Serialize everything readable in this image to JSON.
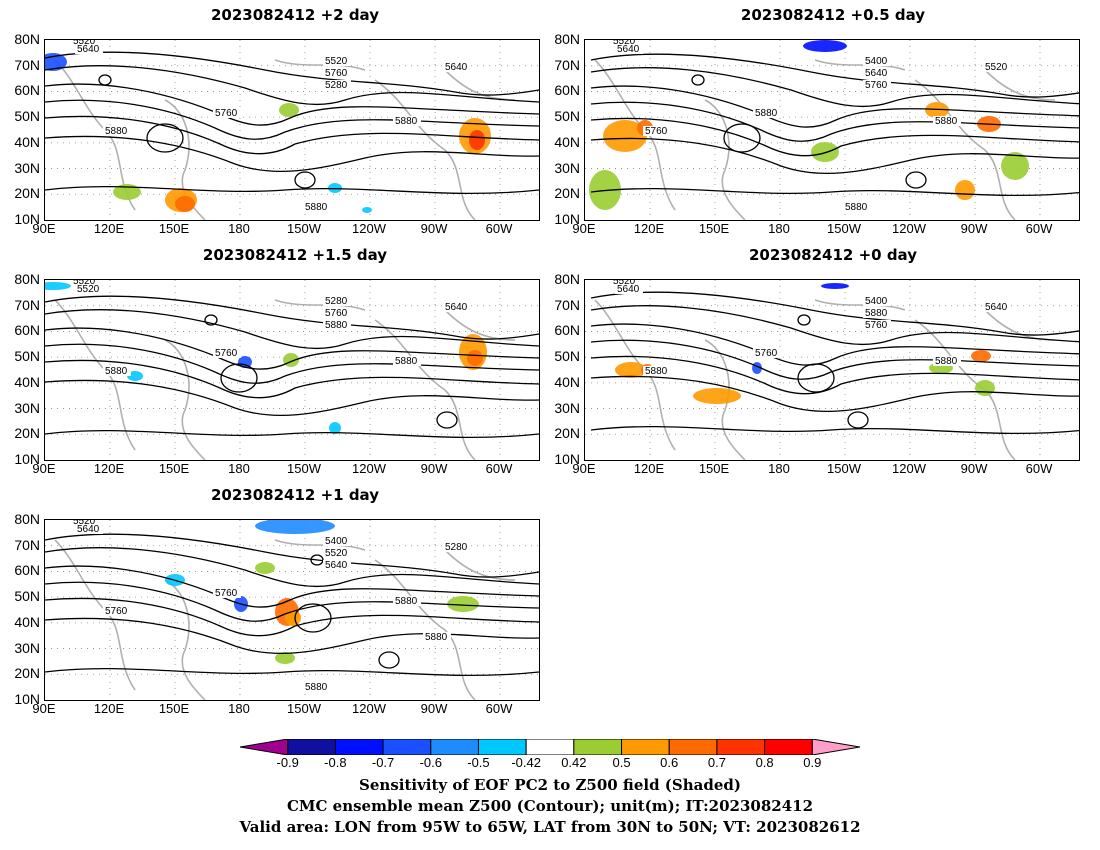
{
  "panels": [
    {
      "id": "p1",
      "title": "2023082412 +2 day",
      "labels": [
        "5520",
        "5640",
        "5520",
        "5640",
        "5760",
        "5280",
        "5760",
        "5880",
        "5880",
        "5880"
      ]
    },
    {
      "id": "p2",
      "title": "2023082412 +0.5 day",
      "labels": [
        "5520",
        "5640",
        "5400",
        "5520",
        "5640",
        "5760",
        "5880",
        "5760",
        "5880",
        "5880"
      ]
    },
    {
      "id": "p3",
      "title": "2023082412 +1.5 day",
      "labels": [
        "5520",
        "5520",
        "5280",
        "5640",
        "5760",
        "5880",
        "5760",
        "5880",
        "5880"
      ]
    },
    {
      "id": "p4",
      "title": "2023082412 +0 day",
      "labels": [
        "5520",
        "5640",
        "5400",
        "5640",
        "5880",
        "5760",
        "5760",
        "5880",
        "5880"
      ]
    },
    {
      "id": "p5",
      "title": "2023082412 +1 day",
      "labels": [
        "5520",
        "5640",
        "5400",
        "5280",
        "5520",
        "5640",
        "5760",
        "5760",
        "5880",
        "5880",
        "5880"
      ]
    }
  ],
  "lat_labels": [
    "80N",
    "70N",
    "60N",
    "50N",
    "40N",
    "30N",
    "20N",
    "10N"
  ],
  "lon_labels": [
    "90E",
    "120E",
    "150E",
    "180",
    "150W",
    "120W",
    "90W",
    "60W"
  ],
  "colorbar": {
    "colors": [
      "#a00090",
      "#1010a0",
      "#0010ff",
      "#1a50ff",
      "#1e8cff",
      "#00c8ff",
      "#ffffff",
      "#9acd32",
      "#ff9900",
      "#ff6a00",
      "#ff3300",
      "#ff0000",
      "#ff9ec8"
    ],
    "labels": [
      "-0.9",
      "-0.8",
      "-0.7",
      "-0.6",
      "-0.5",
      "-0.42",
      "0.42",
      "0.5",
      "0.6",
      "0.7",
      "0.8",
      "0.9"
    ]
  },
  "caption": {
    "line1": "Sensitivity of EOF PC2 to Z500 field (Shaded)",
    "line2": "CMC ensemble mean Z500 (Contour); unit(m); IT:2023082412",
    "line3": "Valid area: LON from 95W to 65W, LAT from 30N to 50N; VT: 2023082612"
  }
}
